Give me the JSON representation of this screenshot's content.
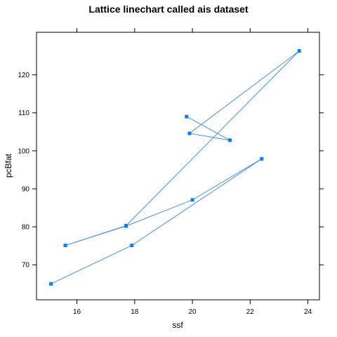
{
  "chart_data": {
    "type": "line",
    "title": "Lattice linechart called ais dataset",
    "xlabel": "ssf",
    "ylabel": "pcBfat",
    "xlim": [
      14.6,
      24.4
    ],
    "ylim": [
      60.8,
      131.2
    ],
    "x_ticks": [
      16,
      18,
      20,
      22,
      24
    ],
    "y_ticks": [
      70,
      80,
      90,
      100,
      110,
      120
    ],
    "grid": false,
    "legend": "none",
    "line_color": "#4A90D9",
    "marker_color": "#0080FF",
    "points": [
      {
        "x": 19.8,
        "y": 109.0
      },
      {
        "x": 21.3,
        "y": 102.8
      },
      {
        "x": 19.9,
        "y": 104.6
      },
      {
        "x": 23.7,
        "y": 126.3
      },
      {
        "x": 17.7,
        "y": 80.3
      },
      {
        "x": 15.6,
        "y": 75.1
      },
      {
        "x": 17.7,
        "y": 80.2
      },
      {
        "x": 20.0,
        "y": 87.1
      },
      {
        "x": 22.4,
        "y": 97.9
      },
      {
        "x": 17.9,
        "y": 75.1
      },
      {
        "x": 15.1,
        "y": 65.0
      }
    ]
  }
}
